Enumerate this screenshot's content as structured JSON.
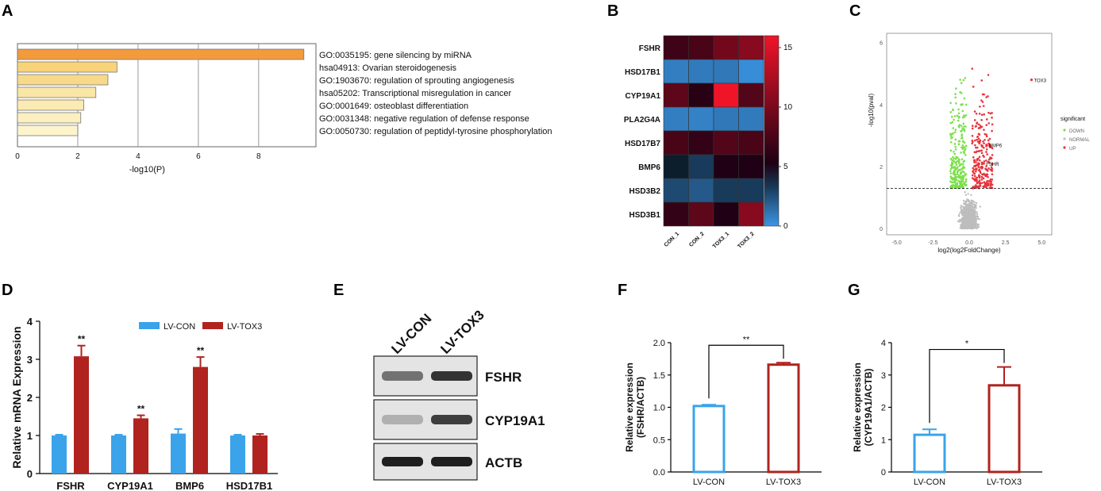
{
  "panels": {
    "A": "A",
    "B": "B",
    "C": "C",
    "D": "D",
    "E": "E",
    "F": "F",
    "G": "G"
  },
  "chart_data": [
    {
      "id": "A",
      "type": "bar",
      "orientation": "horizontal",
      "categories": [
        "GO:0035195: gene silencing by miRNA",
        "hsa04913: Ovarian steroidogenesis",
        "GO:1903670: regulation of sprouting angiogenesis",
        "hsa05202: Transcriptional misregulation in cancer",
        "GO:0001649: osteoblast differentiation",
        "GO:0031348: negative regulation of defense response",
        "GO:0050730: regulation of peptidyl-tyrosine phosphorylation"
      ],
      "values": [
        9.5,
        3.3,
        3.0,
        2.6,
        2.2,
        2.1,
        2.0
      ],
      "colors": [
        "#F39A3C",
        "#F8D37A",
        "#F8D98A",
        "#FAE6A6",
        "#FBEBB3",
        "#FCF0C0",
        "#FDF4CC"
      ],
      "xlabel": "-log10(P)",
      "xticks": [
        "0",
        "2",
        "4",
        "6",
        "8"
      ],
      "xlim": [
        0,
        9.5
      ]
    },
    {
      "id": "B",
      "type": "heatmap",
      "rows": [
        "FSHR",
        "HSD17B1",
        "CYP19A1",
        "PLA2G4A",
        "HSD17B7",
        "BMP6",
        "HSD3B2",
        "HSD3B1"
      ],
      "columns": [
        "CON_1",
        "CON_2",
        "TOX3_1",
        "TOX3_2"
      ],
      "values": [
        [
          6.5,
          7.0,
          9.0,
          10.0
        ],
        [
          0.8,
          0.9,
          1.0,
          0.3
        ],
        [
          8.0,
          5.5,
          15.0,
          7.5
        ],
        [
          0.8,
          0.7,
          1.0,
          0.9
        ],
        [
          7.0,
          6.0,
          7.5,
          7.0
        ],
        [
          4.0,
          3.0,
          5.0,
          5.0
        ],
        [
          2.5,
          2.0,
          3.0,
          3.0
        ],
        [
          6.0,
          8.0,
          5.0,
          10.0
        ]
      ],
      "colorbar_ticks": [
        "0",
        "5",
        "10",
        "15"
      ],
      "range": [
        0,
        15
      ]
    },
    {
      "id": "C",
      "type": "scatter",
      "xlabel": "log2(log2FoldChange)",
      "ylabel": "-log10(pval)",
      "xticks": [
        "-5.0",
        "-2.5",
        "0.0",
        "2.5",
        "5.0"
      ],
      "yticks": [
        "0",
        "2",
        "4",
        "6"
      ],
      "xlim": [
        -5.7,
        5.7
      ],
      "ylim": [
        -0.2,
        6.3
      ],
      "threshold_y": 1.3,
      "legend_title": "significant",
      "legend": [
        {
          "name": "DOWN",
          "color": "#7CE04B"
        },
        {
          "name": "NORMAL",
          "color": "#BDBDBD"
        },
        {
          "name": "UP",
          "color": "#E8343C"
        }
      ],
      "annotations": [
        {
          "label": "TOX3",
          "x": 4.3,
          "y": 4.8
        },
        {
          "label": "BMP6",
          "x": 1.2,
          "y": 2.7
        },
        {
          "label": "FSHR",
          "x": 1.0,
          "y": 2.1
        }
      ]
    },
    {
      "id": "D",
      "type": "bar",
      "categories": [
        "FSHR",
        "CYP19A1",
        "BMP6",
        "HSD17B1"
      ],
      "series": [
        {
          "name": "LV-CON",
          "color": "#3AA3EA",
          "values": [
            1.0,
            1.0,
            1.05,
            1.0
          ],
          "errors": [
            0.02,
            0.02,
            0.12,
            0.02
          ]
        },
        {
          "name": "LV-TOX3",
          "color": "#B0231F",
          "values": [
            3.08,
            1.45,
            2.8,
            1.0
          ],
          "errors": [
            0.28,
            0.08,
            0.26,
            0.04
          ]
        }
      ],
      "significance": [
        "**",
        "**",
        "**",
        ""
      ],
      "ylabel": "Relative mRNA Expression",
      "yticks": [
        "0",
        "1",
        "2",
        "3",
        "4"
      ],
      "ylim": [
        0,
        4
      ]
    },
    {
      "id": "E",
      "type": "table",
      "lanes": [
        "LV-CON",
        "LV-TOX3"
      ],
      "bands": [
        "FSHR",
        "CYP19A1",
        "ACTB"
      ]
    },
    {
      "id": "F",
      "type": "bar",
      "categories": [
        "LV-CON",
        "LV-TOX3"
      ],
      "values": [
        1.02,
        1.66
      ],
      "errors": [
        0.02,
        0.03
      ],
      "colors": [
        "#3AA3EA",
        "#B0231F"
      ],
      "significance": "**",
      "ylabel": "Relative expression (FSHR/ACTB)",
      "ylabel_lines": [
        "Relative expression",
        "(FSHR/ACTB)"
      ],
      "yticks": [
        "0.0",
        "0.5",
        "1.0",
        "1.5",
        "2.0"
      ],
      "ylim": [
        0,
        2
      ]
    },
    {
      "id": "G",
      "type": "bar",
      "categories": [
        "LV-CON",
        "LV-TOX3"
      ],
      "values": [
        1.15,
        2.68
      ],
      "errors": [
        0.17,
        0.57
      ],
      "colors": [
        "#3AA3EA",
        "#B0231F"
      ],
      "significance": "*",
      "ylabel": "Relative expression (CYP19A1/ACTB)",
      "ylabel_lines": [
        "Relative expression",
        "(CYP19A1/ACTB)"
      ],
      "yticks": [
        "0",
        "1",
        "2",
        "3",
        "4"
      ],
      "ylim": [
        0,
        4
      ]
    }
  ]
}
